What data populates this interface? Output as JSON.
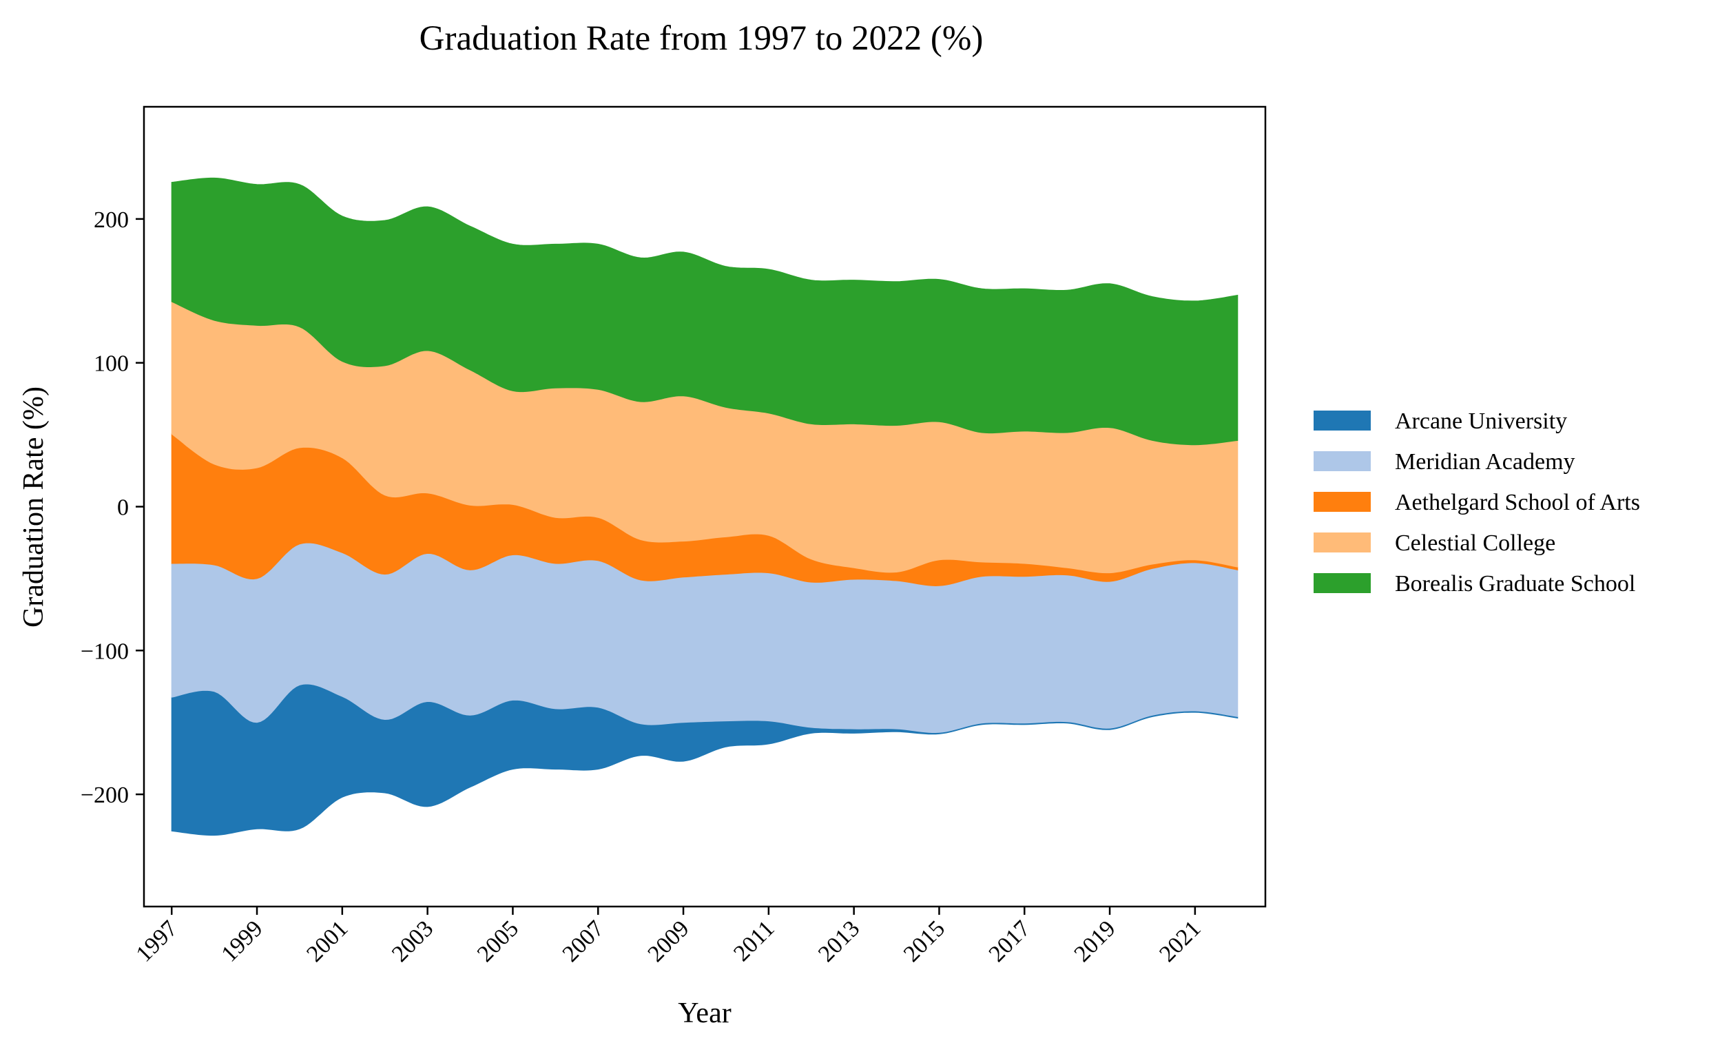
{
  "chart_data": {
    "type": "area",
    "subtype": "streamgraph",
    "title": "Graduation Rate from 1997 to 2022 (%)",
    "xlabel": "Year",
    "ylabel": "Graduation Rate (%)",
    "x": [
      1997,
      1998,
      1999,
      2000,
      2001,
      2002,
      2003,
      2004,
      2005,
      2006,
      2007,
      2008,
      2009,
      2010,
      2011,
      2012,
      2013,
      2014,
      2015,
      2016,
      2017,
      2018,
      2019,
      2020,
      2021,
      2022
    ],
    "x_ticks": [
      "1997",
      "1999",
      "2001",
      "2003",
      "2005",
      "2007",
      "2009",
      "2011",
      "2013",
      "2015",
      "2017",
      "2019",
      "2021"
    ],
    "y_ticks": [
      -200,
      -100,
      0,
      100,
      200
    ],
    "ylim": [
      -278,
      278
    ],
    "xlim": [
      1996.35,
      2022.65
    ],
    "grid": false,
    "legend_position": "right",
    "series": [
      {
        "name": "Arcane University",
        "color": "#1f77b4",
        "values": [
          93,
          100,
          74,
          100,
          70,
          51,
          73,
          50,
          48,
          42,
          43,
          22,
          27,
          18,
          16,
          4,
          3,
          2,
          1,
          1,
          1,
          1,
          1,
          1,
          1,
          1
        ]
      },
      {
        "name": "Meridian Academy",
        "color": "#aec7e8",
        "values": [
          93,
          88,
          100,
          98,
          100,
          101,
          103,
          101,
          101,
          101,
          102,
          100,
          101,
          102,
          103,
          101,
          104,
          103,
          102,
          102,
          102,
          102,
          102,
          102,
          103,
          102
        ]
      },
      {
        "name": "Aethelgard School of Arts",
        "color": "#ff7f0e",
        "values": [
          90,
          70,
          77,
          67,
          66,
          55,
          42,
          45,
          35,
          32,
          30,
          28,
          25,
          26,
          26,
          16,
          8,
          6,
          18,
          10,
          9,
          5,
          6,
          3,
          2,
          2
        ]
      },
      {
        "name": "Celestial College",
        "color": "#ffbb78",
        "values": [
          92,
          100,
          99,
          84,
          67,
          90,
          99,
          94,
          79,
          90,
          89,
          96,
          101,
          90,
          85,
          94,
          100,
          102,
          96,
          90,
          92,
          94,
          101,
          86,
          80,
          88
        ]
      },
      {
        "name": "Borealis Graduate School",
        "color": "#2ca02c",
        "values": [
          83,
          99,
          98,
          99,
          101,
          101,
          100,
          100,
          102,
          100,
          101,
          100,
          100,
          98,
          100,
          100,
          100,
          100,
          99,
          100,
          99,
          99,
          100,
          100,
          100,
          101
        ]
      }
    ]
  }
}
